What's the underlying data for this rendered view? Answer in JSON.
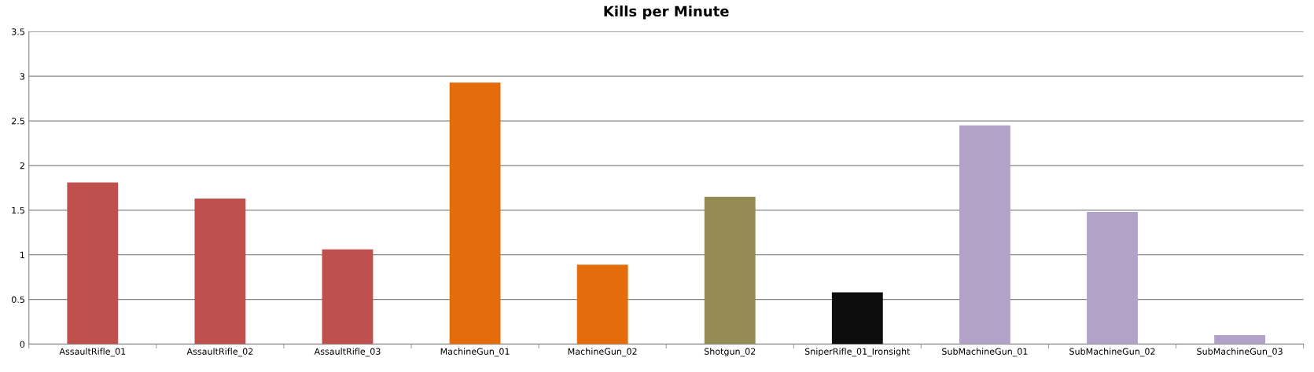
{
  "chart_data": {
    "type": "bar",
    "title": "Kills per Minute",
    "categories": [
      "AssaultRifle_01",
      "AssaultRifle_02",
      "AssaultRifle_03",
      "MachineGun_01",
      "MachineGun_02",
      "Shotgun_02",
      "SniperRifle_01_Ironsight",
      "SubMachineGun_01",
      "SubMachineGun_02",
      "SubMachineGun_03"
    ],
    "values": [
      1.81,
      1.63,
      1.06,
      2.93,
      0.89,
      1.65,
      0.58,
      2.45,
      1.48,
      0.1
    ],
    "colors": [
      "#c0504d",
      "#c0504d",
      "#c0504d",
      "#e46c0a",
      "#e46c0a",
      "#948a54",
      "#0d0d0d",
      "#b3a2c7",
      "#b3a2c7",
      "#b3a2c7"
    ],
    "ylim": [
      0,
      3.5
    ],
    "yticks": [
      0,
      0.5,
      1,
      1.5,
      2,
      2.5,
      3,
      3.5
    ],
    "grid": "y"
  }
}
